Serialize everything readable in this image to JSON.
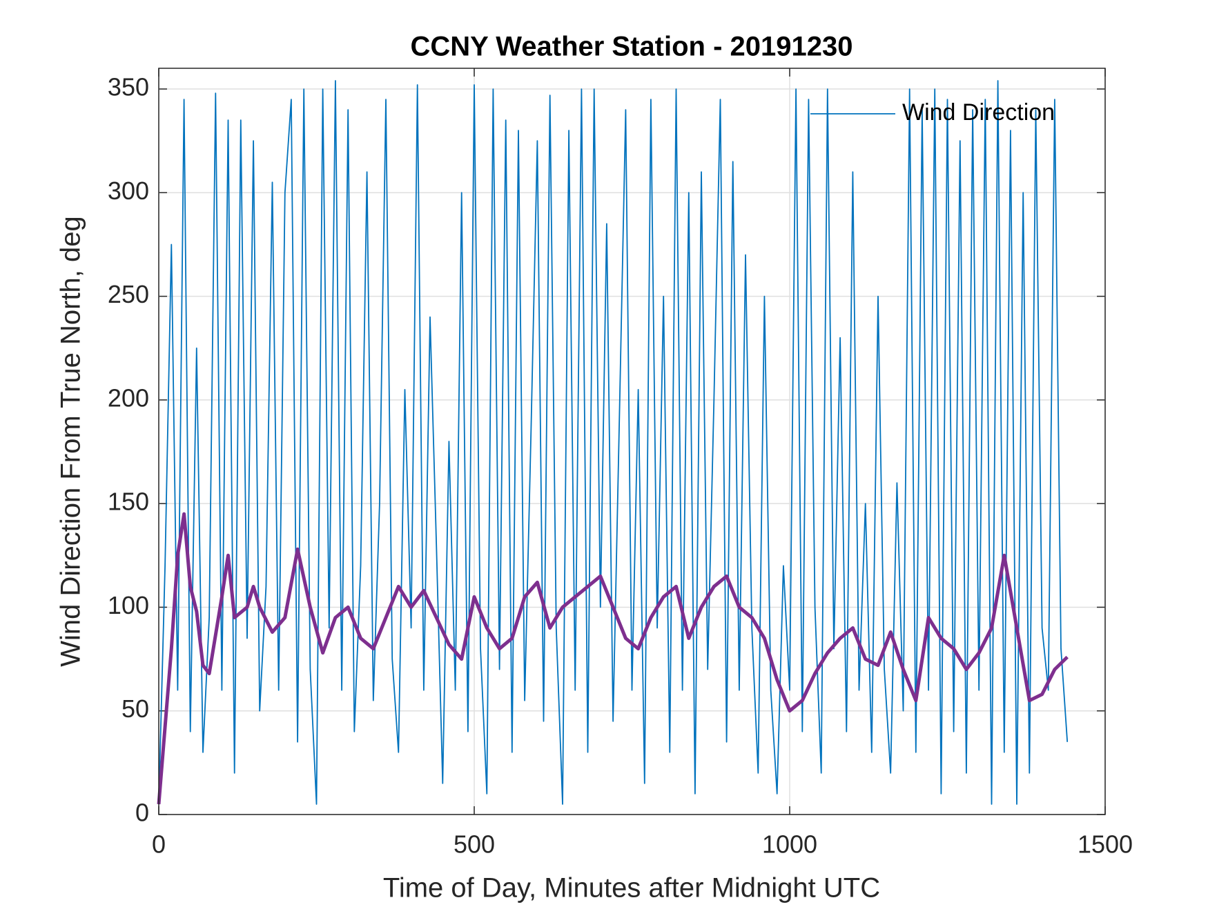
{
  "chart_data": {
    "type": "line",
    "title": "CCNY Weather Station - 20191230",
    "xlabel": "Time of Day, Minutes after Midnight UTC",
    "ylabel": "Wind Direction From True North, deg",
    "xlim": [
      0,
      1500
    ],
    "xticks": [
      0,
      500,
      1000,
      1500
    ],
    "ylim": [
      0,
      360
    ],
    "yticks": [
      0,
      50,
      100,
      150,
      200,
      250,
      300,
      350
    ],
    "grid": true,
    "legend": "upper right",
    "series": [
      {
        "name": "Wind Direction",
        "color": "#0072bd",
        "x": [
          0,
          10,
          20,
          30,
          40,
          50,
          60,
          70,
          80,
          90,
          100,
          110,
          120,
          130,
          140,
          150,
          160,
          170,
          180,
          190,
          200,
          210,
          220,
          230,
          240,
          250,
          260,
          270,
          280,
          290,
          300,
          310,
          320,
          330,
          340,
          350,
          360,
          370,
          380,
          390,
          400,
          410,
          420,
          430,
          440,
          450,
          460,
          470,
          480,
          490,
          500,
          510,
          520,
          530,
          540,
          550,
          560,
          570,
          580,
          590,
          600,
          610,
          620,
          630,
          640,
          650,
          660,
          670,
          680,
          690,
          700,
          710,
          720,
          730,
          740,
          750,
          760,
          770,
          780,
          790,
          800,
          810,
          820,
          830,
          840,
          850,
          860,
          870,
          880,
          890,
          900,
          910,
          920,
          930,
          940,
          950,
          960,
          970,
          980,
          990,
          1000,
          1010,
          1020,
          1030,
          1040,
          1050,
          1060,
          1070,
          1080,
          1090,
          1100,
          1110,
          1120,
          1130,
          1140,
          1150,
          1160,
          1170,
          1180,
          1190,
          1200,
          1210,
          1220,
          1230,
          1240,
          1250,
          1260,
          1270,
          1280,
          1290,
          1300,
          1310,
          1320,
          1330,
          1340,
          1350,
          1360,
          1370,
          1380,
          1390,
          1400,
          1410,
          1420,
          1430,
          1440
        ],
        "values": [
          5,
          120,
          275,
          60,
          345,
          40,
          225,
          30,
          95,
          348,
          60,
          335,
          20,
          335,
          85,
          325,
          50,
          110,
          305,
          60,
          300,
          345,
          35,
          350,
          70,
          5,
          350,
          90,
          354,
          60,
          340,
          40,
          120,
          310,
          55,
          150,
          345,
          75,
          30,
          205,
          90,
          352,
          60,
          240,
          130,
          15,
          180,
          60,
          300,
          40,
          352,
          80,
          10,
          350,
          70,
          335,
          30,
          330,
          55,
          185,
          325,
          45,
          347,
          90,
          5,
          330,
          60,
          350,
          30,
          350,
          100,
          285,
          45,
          190,
          340,
          60,
          205,
          15,
          345,
          90,
          250,
          30,
          350,
          60,
          300,
          10,
          310,
          70,
          200,
          345,
          35,
          315,
          60,
          270,
          90,
          20,
          250,
          60,
          10,
          120,
          60,
          350,
          40,
          345,
          100,
          20,
          350,
          80,
          230,
          40,
          310,
          60,
          150,
          30,
          250,
          70,
          20,
          160,
          50,
          350,
          30,
          340,
          60,
          350,
          10,
          345,
          40,
          325,
          20,
          340,
          60,
          345,
          5,
          354,
          30,
          330,
          5,
          300,
          20,
          340,
          90,
          60,
          345,
          80,
          35
        ]
      },
      {
        "color": "#7e2f8e",
        "x": [
          0,
          20,
          30,
          40,
          50,
          60,
          70,
          80,
          100,
          110,
          120,
          140,
          150,
          160,
          180,
          200,
          220,
          240,
          260,
          280,
          300,
          320,
          340,
          360,
          380,
          400,
          420,
          440,
          460,
          480,
          500,
          520,
          540,
          560,
          580,
          600,
          620,
          640,
          660,
          680,
          700,
          720,
          740,
          760,
          780,
          800,
          820,
          840,
          860,
          880,
          900,
          920,
          940,
          960,
          980,
          1000,
          1020,
          1040,
          1060,
          1080,
          1100,
          1120,
          1140,
          1160,
          1180,
          1200,
          1220,
          1240,
          1260,
          1280,
          1300,
          1320,
          1340,
          1360,
          1380,
          1400,
          1420,
          1440
        ],
        "values": [
          5,
          80,
          125,
          145,
          110,
          98,
          72,
          68,
          105,
          125,
          95,
          100,
          110,
          100,
          88,
          95,
          128,
          100,
          78,
          95,
          100,
          85,
          80,
          95,
          110,
          100,
          108,
          95,
          82,
          75,
          105,
          90,
          80,
          85,
          105,
          112,
          90,
          100,
          105,
          110,
          115,
          100,
          85,
          80,
          95,
          105,
          110,
          85,
          100,
          110,
          115,
          100,
          95,
          85,
          65,
          50,
          55,
          68,
          78,
          85,
          90,
          75,
          72,
          88,
          70,
          55,
          95,
          85,
          80,
          70,
          78,
          90,
          125,
          90,
          55,
          58,
          70,
          76
        ]
      }
    ]
  }
}
